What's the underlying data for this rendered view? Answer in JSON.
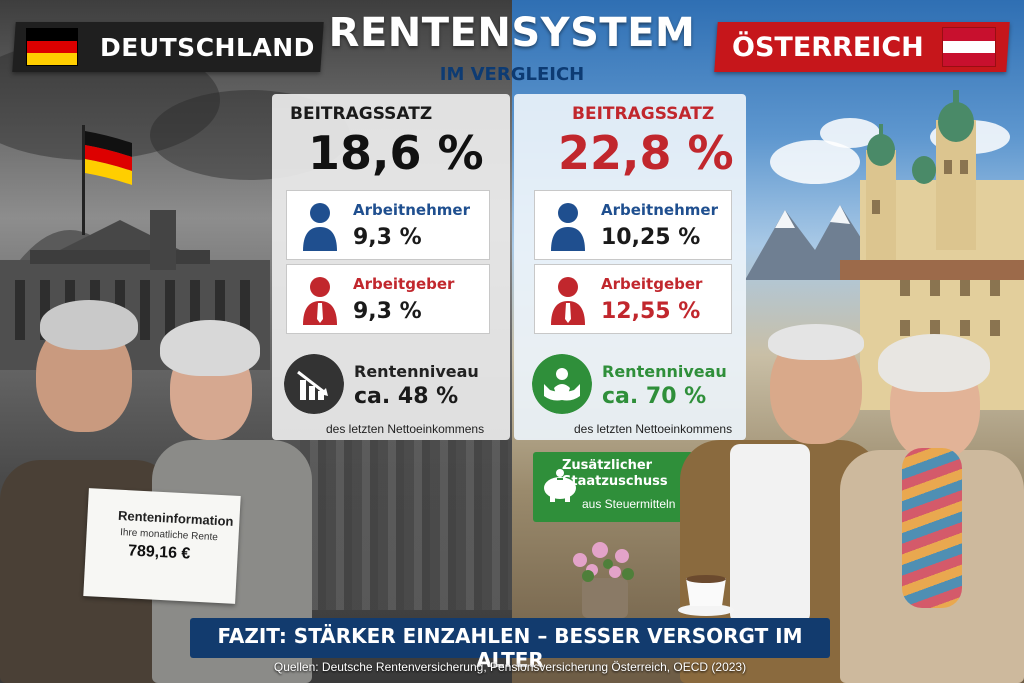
{
  "title": "RENTENSYSTEM",
  "subtitle": "IM VERGLEICH",
  "germany": {
    "country_label": "DEUTSCHLAND",
    "flag_colors": [
      "#000000",
      "#dd0000",
      "#ffce00"
    ],
    "contribution_label": "BEITRAGSSATZ",
    "contribution_rate": "18,6 %",
    "employee_label": "Arbeitnehmer",
    "employee_rate": "9,3 %",
    "employer_label": "Arbeitgeber",
    "employer_rate": "9,3 %",
    "pension_level_label": "Rentenniveau",
    "pension_level_value": "ca. 48 %",
    "pension_level_note": "des letzten Nettoeinkommens",
    "letter": {
      "title": "Renteninformation",
      "subtitle": "Ihre monatliche Rente",
      "amount": "789,16 €"
    }
  },
  "austria": {
    "country_label": "ÖSTERREICH",
    "flag_colors": [
      "#c8102e",
      "#ffffff",
      "#c8102e"
    ],
    "contribution_label": "BEITRAGSSATZ",
    "contribution_rate": "22,8 %",
    "employee_label": "Arbeitnehmer",
    "employee_rate": "10,25 %",
    "employer_label": "Arbeitgeber",
    "employer_rate": "12,55 %",
    "pension_level_label": "Rentenniveau",
    "pension_level_value": "ca. 70 %",
    "pension_level_note": "des letzten Nettoeinkommens",
    "subsidy_title": "Zusätzlicher Staatzuschuss",
    "subsidy_note": "aus Steuermitteln"
  },
  "conclusion": "FAZIT: STÄRKER EINZAHLEN – BESSER VERSORGT IM ALTER",
  "sources": "Quellen: Deutsche Rentenversicherung, Pensionsversicherung Österreich, OECD (2023)",
  "colors": {
    "german_accent": "#1f1f1f",
    "austrian_accent": "#c6161b",
    "employee_blue": "#1f4f8f",
    "employer_red": "#c1272d",
    "pension_green": "#2f8f3a",
    "navy": "#123b6e"
  },
  "icons": [
    "person-icon",
    "declining-chart-icon",
    "hands-care-icon",
    "piggy-bank-icon"
  ]
}
